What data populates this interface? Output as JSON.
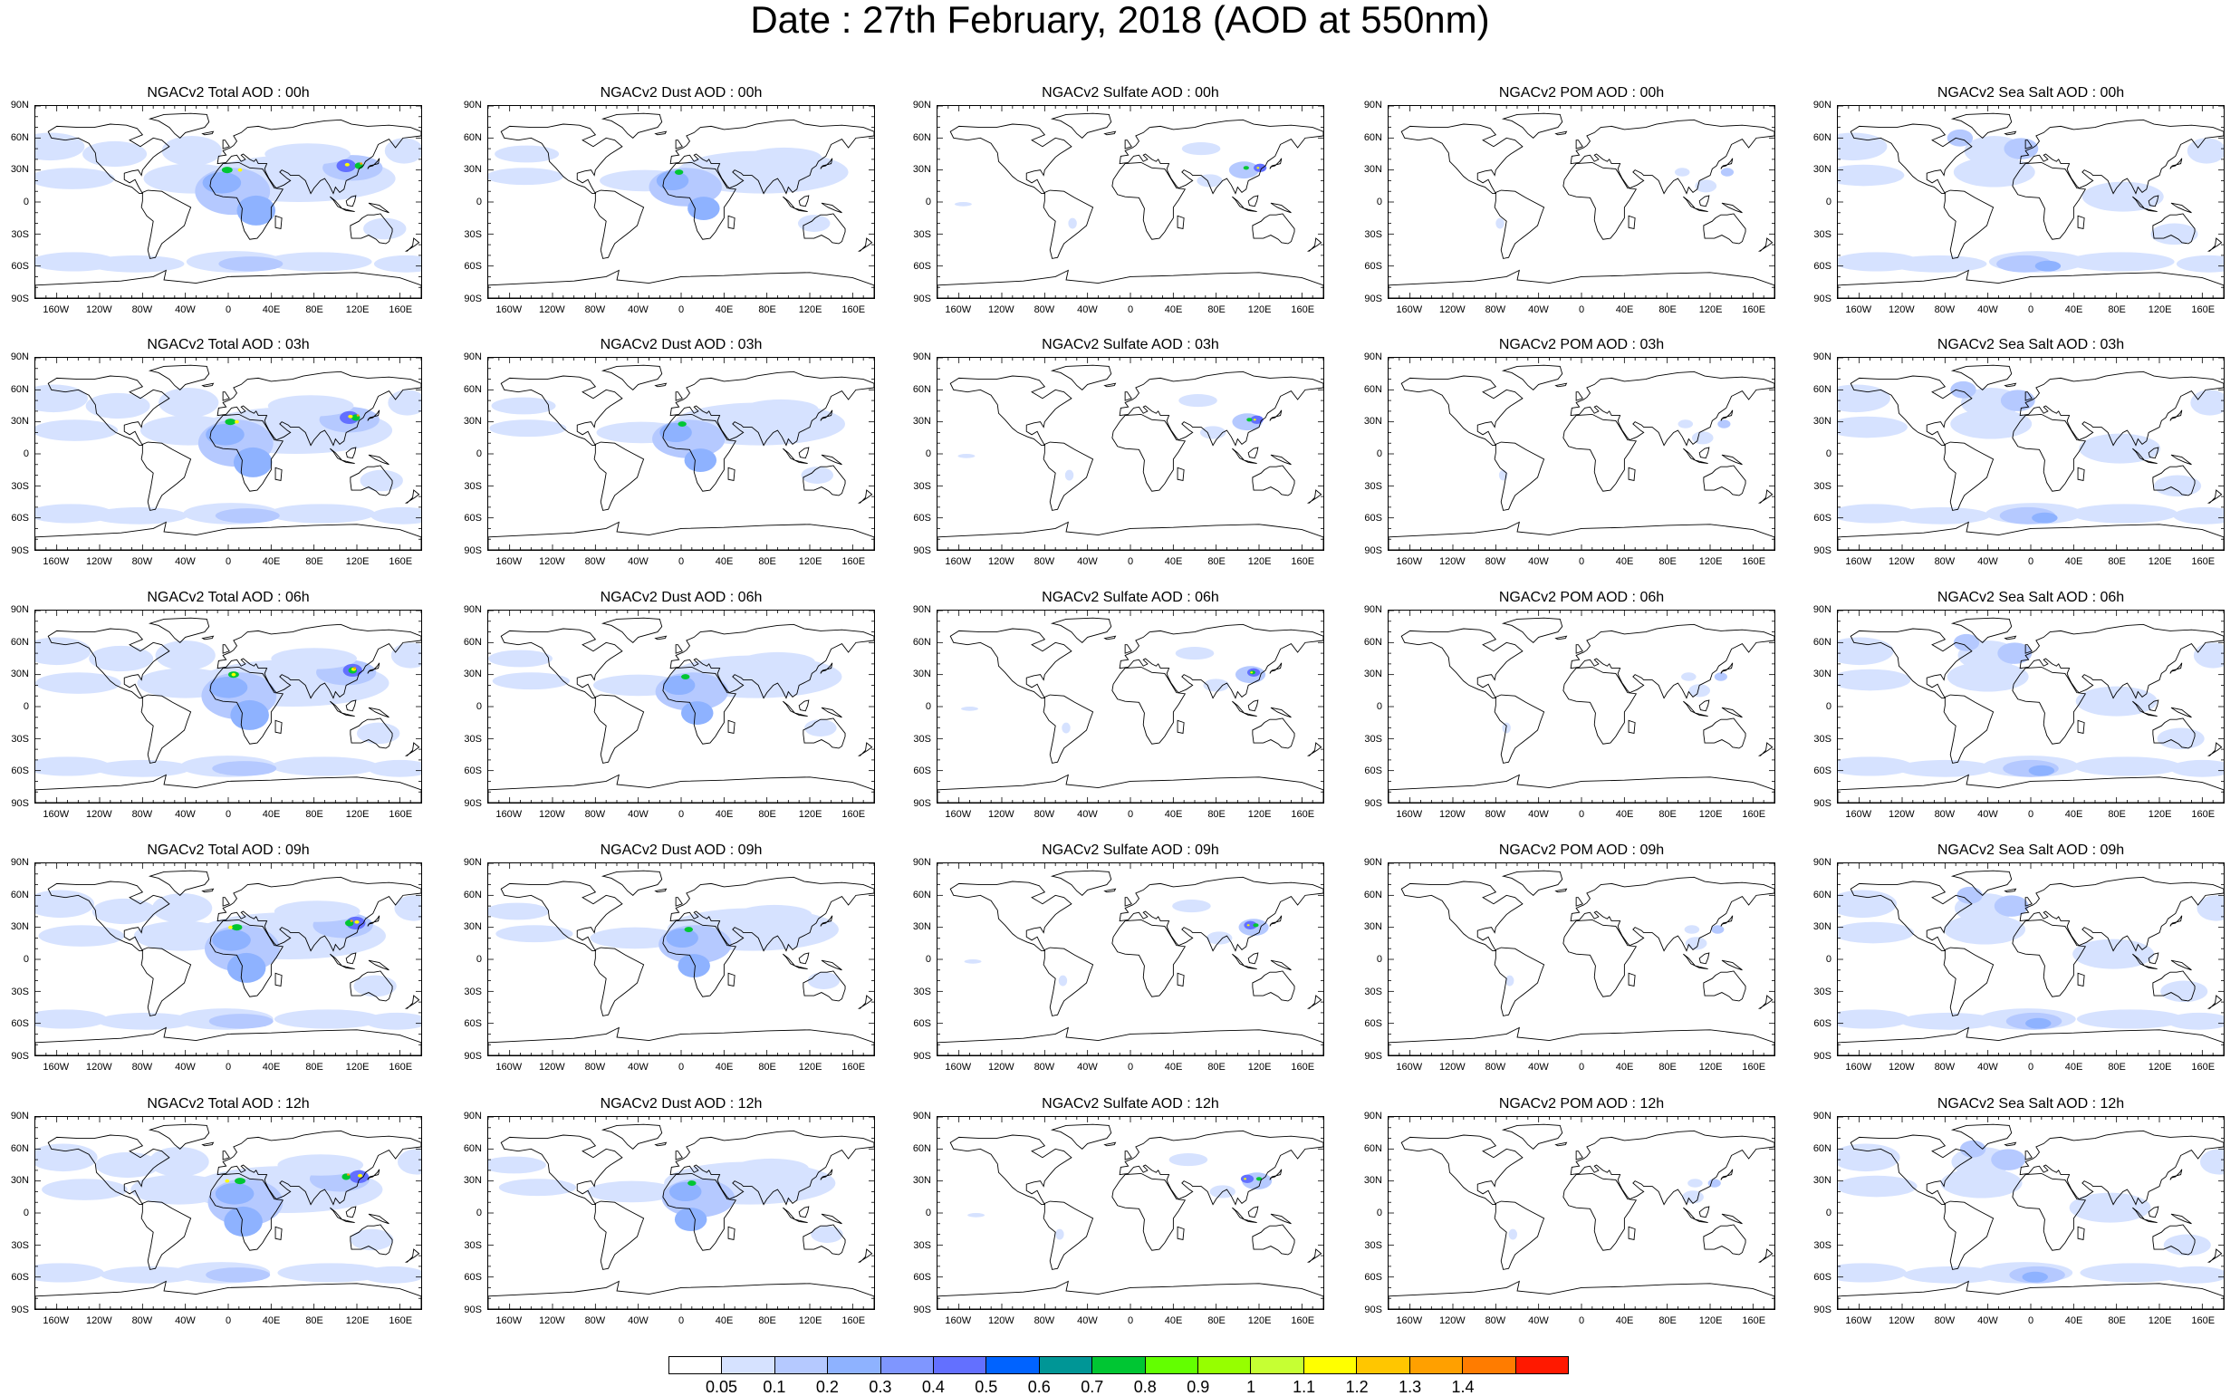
{
  "title": "Date : 27th February, 2018 (AOD at 550nm)",
  "lat_labels": [
    "90N",
    "60N",
    "30N",
    "0",
    "30S",
    "60S",
    "90S"
  ],
  "lon_labels": [
    "160W",
    "120W",
    "80W",
    "40W",
    "0",
    "40E",
    "80E",
    "120E",
    "160E"
  ],
  "panel_titles": [
    [
      "NGACv2 Total AOD : 00h",
      "NGACv2 Dust AOD : 00h",
      "NGACv2 Sulfate AOD : 00h",
      "NGACv2 POM AOD : 00h",
      "NGACv2 Sea Salt AOD : 00h"
    ],
    [
      "NGACv2 Total AOD : 03h",
      "NGACv2 Dust AOD : 03h",
      "NGACv2 Sulfate AOD : 03h",
      "NGACv2 POM AOD : 03h",
      "NGACv2 Sea Salt AOD : 03h"
    ],
    [
      "NGACv2 Total AOD : 06h",
      "NGACv2 Dust AOD : 06h",
      "NGACv2 Sulfate AOD : 06h",
      "NGACv2 POM AOD : 06h",
      "NGACv2 Sea Salt AOD : 06h"
    ],
    [
      "NGACv2 Total AOD : 09h",
      "NGACv2 Dust AOD : 09h",
      "NGACv2 Sulfate AOD : 09h",
      "NGACv2 POM AOD : 09h",
      "NGACv2 Sea Salt  AOD : 09h"
    ],
    [
      "NGACv2 Total AOD :  12h",
      "NGACv2 Dust AOD : 12h",
      "NGACv2 Sulfate AOD : 12h",
      "NGACv2 POM  AOD : 12h",
      "NGACv2 Sea Salt AOD : 12h"
    ]
  ],
  "colorbar": {
    "labels": [
      "0.05",
      "0.1",
      "0.2",
      "0.3",
      "0.4",
      "0.5",
      "0.6",
      "0.7",
      "0.8",
      "0.9",
      "1",
      "1.1",
      "1.2",
      "1.3",
      "1.4"
    ],
    "colors": [
      "#ffffff",
      "#d6e2ff",
      "#b5c9ff",
      "#8eb2ff",
      "#7f96ff",
      "#6370ff",
      "#0063ff",
      "#009696",
      "#00c633",
      "#63ff00",
      "#96ff00",
      "#c6ff33",
      "#ffff00",
      "#ffc600",
      "#ffa000",
      "#ff7c00",
      "#ff1900"
    ]
  },
  "map_colors": {
    "land_outline": "#000000",
    "light_blue": "#d6e2ff",
    "mid_blue": "#b5c9ff",
    "blue": "#8eb2ff",
    "deep_blue": "#6370ff",
    "green": "#00c633",
    "yellow": "#ffff00",
    "orange": "#ffa000"
  }
}
